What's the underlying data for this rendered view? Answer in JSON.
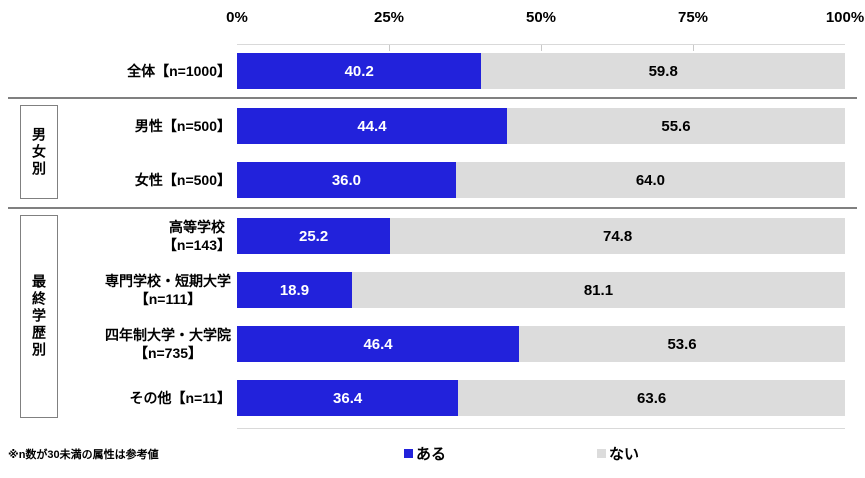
{
  "chart": {
    "axis_ticks": [
      "0%",
      "25%",
      "50%",
      "75%",
      "100%"
    ],
    "groups": [
      {
        "label": "男女別"
      },
      {
        "label": "最終学歴別"
      }
    ],
    "rows": [
      {
        "label": "全体【n=1000】",
        "have": "40.2",
        "not": "59.8"
      },
      {
        "label": "男性【n=500】",
        "have": "44.4",
        "not": "55.6"
      },
      {
        "label": "女性【n=500】",
        "have": "36.0",
        "not": "64.0"
      },
      {
        "label": "高等学校\n【n=143】",
        "have": "25.2",
        "not": "74.8"
      },
      {
        "label": "専門学校・短期大学\n【n=111】",
        "have": "18.9",
        "not": "81.1"
      },
      {
        "label": "四年制大学・大学院\n【n=735】",
        "have": "46.4",
        "not": "53.6"
      },
      {
        "label": "その他【n=11】",
        "have": "36.4",
        "not": "63.6"
      }
    ],
    "legend": [
      {
        "label": "ある"
      },
      {
        "label": "ない"
      }
    ],
    "footnote": "※n数が30未満の属性は参考値",
    "colors": {
      "have": "#2222DB",
      "not": "#DCDCDC"
    }
  },
  "chart_data": {
    "type": "bar",
    "subtype": "horizontal-stacked",
    "categories": [
      "全体【n=1000】",
      "男性【n=500】",
      "女性【n=500】",
      "高等学校【n=143】",
      "専門学校・短期大学【n=111】",
      "四年制大学・大学院【n=735】",
      "その他【n=11】"
    ],
    "category_groups": [
      {
        "label": "男女別",
        "categories": [
          "男性【n=500】",
          "女性【n=500】"
        ]
      },
      {
        "label": "最終学歴別",
        "categories": [
          "高等学校【n=143】",
          "専門学校・短期大学【n=111】",
          "四年制大学・大学院【n=735】",
          "その他【n=11】"
        ]
      }
    ],
    "series": [
      {
        "name": "ある",
        "color": "#2222DB",
        "values": [
          40.2,
          44.4,
          36.0,
          25.2,
          18.9,
          46.4,
          36.4
        ]
      },
      {
        "name": "ない",
        "color": "#DCDCDC",
        "values": [
          59.8,
          55.6,
          64.0,
          74.8,
          81.1,
          53.6,
          63.6
        ]
      }
    ],
    "title": "",
    "xlabel": "",
    "ylabel": "",
    "xlim": [
      0,
      100
    ],
    "x_tick_labels": [
      "0%",
      "25%",
      "50%",
      "75%",
      "100%"
    ],
    "value_labels": "inside-segments",
    "legend_position": "bottom",
    "grid": false,
    "annotation": "※n数が30未満の属性は参考値"
  }
}
